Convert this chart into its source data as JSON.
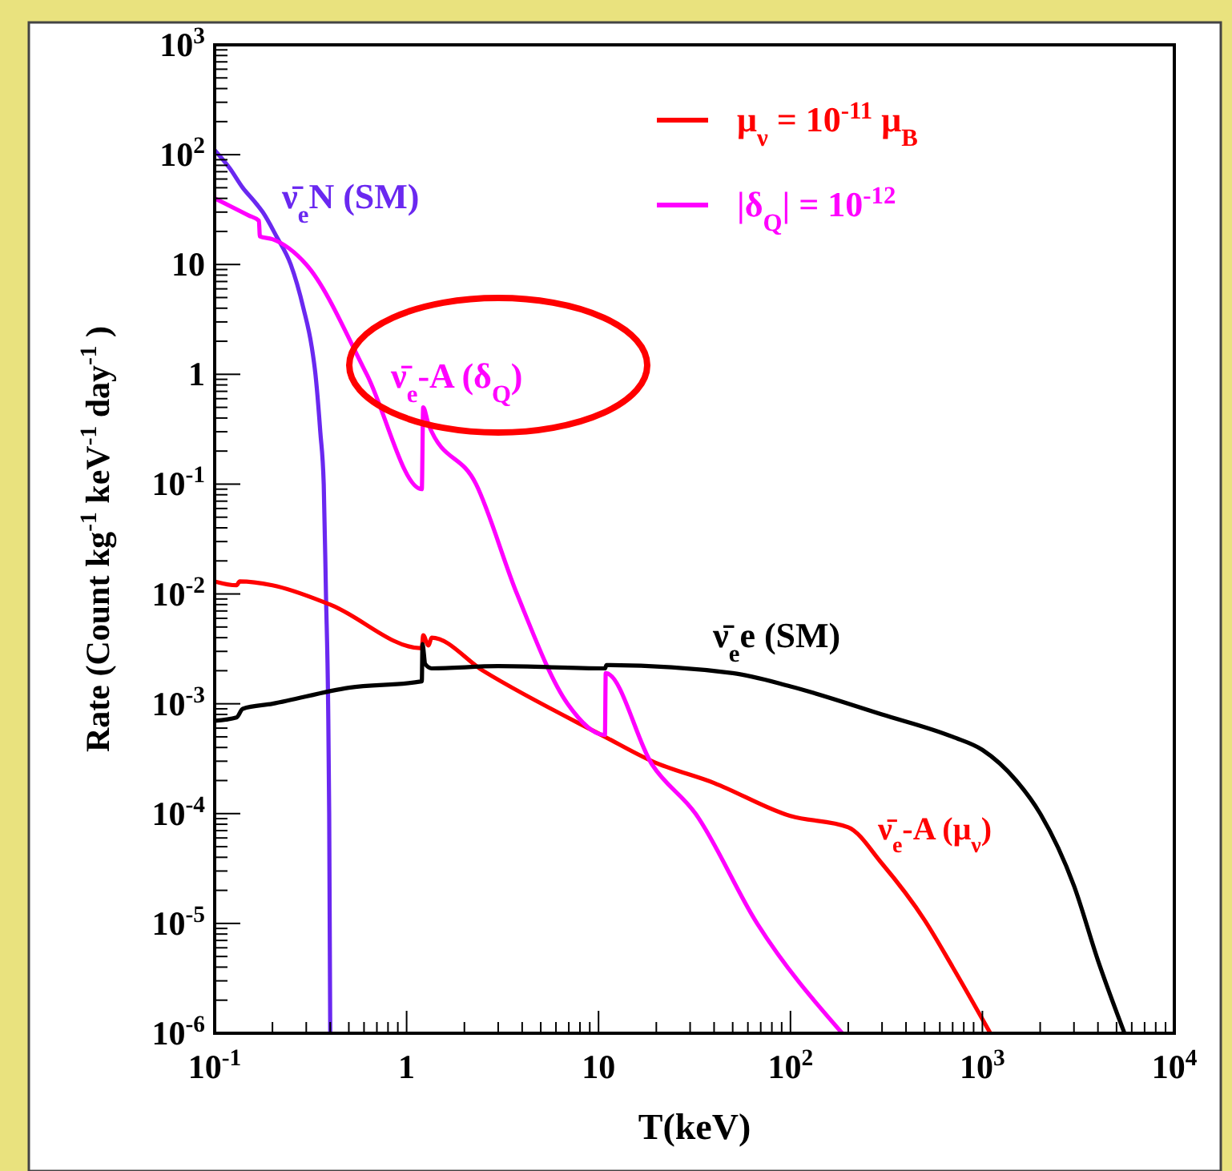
{
  "chart_data": {
    "type": "line",
    "xlabel": "T(keV)",
    "ylabel": "Rate (Count kg$^{-1}$ keV$^{-1}$ day$^{-1}$ )",
    "log": "xy",
    "legend": "top right",
    "grid": false,
    "marker": "none",
    "line_style": "solid",
    "xlim": [
      0.1,
      10000
    ],
    "xticks": [
      {
        "value": 0.1,
        "label": "10$^{-1}$"
      },
      1,
      10,
      {
        "value": 100,
        "label": "10$^{2}$"
      },
      {
        "value": 1000,
        "label": "10$^{3}$"
      },
      {
        "value": 10000,
        "label": "10$^{4}$"
      }
    ],
    "ylim": [
      1e-06,
      1000
    ],
    "yticks": [
      {
        "value": 1e-06,
        "label": "10$^{-6}$"
      },
      {
        "value": 1e-05,
        "label": "10$^{-5}$"
      },
      {
        "value": 0.0001,
        "label": "10$^{-4}$"
      },
      {
        "value": 0.001,
        "label": "10$^{-3}$"
      },
      {
        "value": 0.01,
        "label": "10$^{-2}$"
      },
      {
        "value": 0.1,
        "label": "10$^{-1}$"
      },
      1,
      10,
      {
        "value": 100,
        "label": "10$^{2}$"
      },
      {
        "value": 1000,
        "label": "10$^{3}$"
      }
    ],
    "series": [
      {
        "name": "ν̄$_{e}$N (SM)",
        "color": "#6a28f0",
        "x": [
          0.1,
          0.12,
          0.14,
          0.16,
          0.178,
          0.21,
          0.249,
          0.29,
          0.32,
          0.335,
          0.355,
          0.37,
          0.38,
          0.39,
          0.395,
          0.4
        ],
        "values": [
          110,
          75,
          50,
          38,
          30,
          18,
          10,
          4,
          1.8,
          1,
          0.3,
          0.1,
          0.01,
          0.001,
          0.0001,
          1e-06
        ]
      },
      {
        "name": "μ$_{ν}$ = 10$^{-11}$ μ$_{B}$",
        "color": "#ff0000",
        "x": [
          0.1,
          0.13,
          0.135,
          0.2,
          0.4,
          1.2,
          1.22,
          1.3,
          1.35,
          2.5,
          10.8,
          19,
          40,
          100,
          200,
          300,
          500,
          700,
          1100
        ],
        "values": [
          0.013,
          0.012,
          0.013,
          0.012,
          0.008,
          0.0032,
          0.0042,
          0.0034,
          0.004,
          0.002,
          0.0005,
          0.0003,
          0.00019,
          9.5e-05,
          7.5e-05,
          3.5e-05,
          1.07e-05,
          4e-06,
          1e-06
        ]
      },
      {
        "name": "|δ$_{Q}$| = 10$^{-12}$",
        "color": "#ff00ff",
        "x": [
          0.1,
          0.15,
          0.17,
          0.172,
          0.2,
          0.3,
          0.62,
          1.2,
          1.22,
          1.3,
          2.3,
          3.76,
          6.9,
          10.8,
          10.9,
          19,
          32,
          67,
          186
        ],
        "values": [
          40,
          28,
          25,
          18,
          17,
          10,
          1,
          0.09,
          0.5,
          0.35,
          0.1,
          0.01,
          0.001,
          0.00052,
          0.0019,
          0.00028,
          0.0001,
          1e-05,
          1e-06
        ]
      },
      {
        "name": "ν̄$_{e}$e (SM)",
        "color": "#000000",
        "x": [
          0.1,
          0.13,
          0.14,
          0.2,
          0.5,
          1.2,
          1.21,
          1.25,
          1.35,
          3,
          10.8,
          11,
          50,
          100,
          300,
          700,
          1000,
          1500,
          2000,
          3000,
          4000,
          5500
        ],
        "values": [
          0.0007,
          0.00075,
          0.0009,
          0.001,
          0.0014,
          0.0016,
          0.0035,
          0.0023,
          0.0021,
          0.0022,
          0.0021,
          0.00225,
          0.0019,
          0.00144,
          0.0008,
          0.0005,
          0.00038,
          0.0002,
          0.0001,
          2.2e-05,
          4.6e-06,
          1e-06
        ]
      }
    ],
    "annotations": [
      "ν̄$_{e}$-A (δ$_{Q}$)",
      "ν̄$_{e}$-A (μ$_{ν}$)"
    ]
  }
}
